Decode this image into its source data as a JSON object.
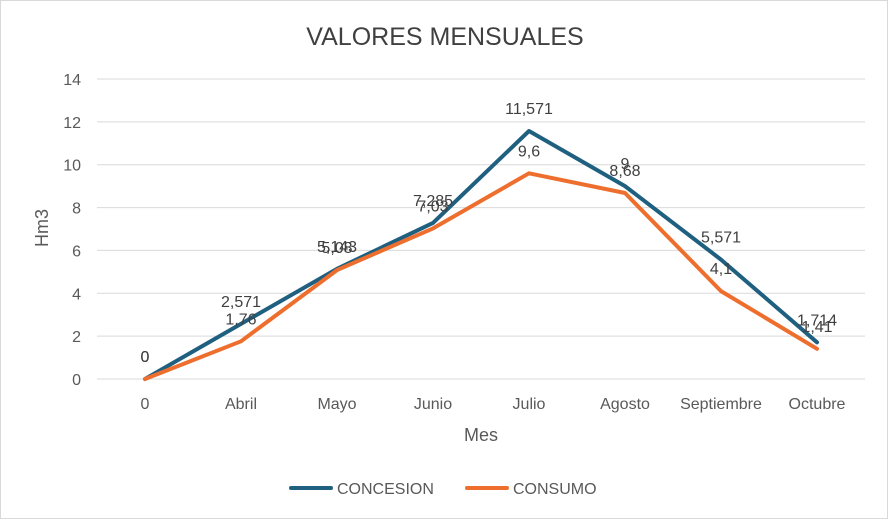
{
  "chart_data": {
    "type": "line",
    "title": "VALORES MENSUALES",
    "xlabel": "Mes",
    "ylabel": "Hm3",
    "categories": [
      "0",
      "Abril",
      "Mayo",
      "Junio",
      "Julio",
      "Agosto",
      "Septiembre",
      "Octubre"
    ],
    "ylim": [
      0,
      14
    ],
    "yticks": [
      "0",
      "2",
      "4",
      "6",
      "8",
      "10",
      "12",
      "14"
    ],
    "grid": true,
    "legend_position": "bottom",
    "series": [
      {
        "name": "CONCESION",
        "color": "#1f5f7f",
        "values": [
          0,
          2.571,
          5.143,
          7.285,
          11.571,
          9,
          5.571,
          1.714
        ],
        "labels": [
          "0",
          "2,571",
          "5,143",
          "7,285",
          "11,571",
          "9",
          "5,571",
          "1,714"
        ]
      },
      {
        "name": "CONSUMO",
        "color": "#ee6e2d",
        "values": [
          0,
          1.76,
          5.08,
          7.03,
          9.6,
          8.68,
          4.1,
          1.41
        ],
        "labels": [
          "0",
          "1,76",
          "5,08",
          "7,03",
          "9,6",
          "8,68",
          "4,1",
          "1,41"
        ]
      }
    ]
  }
}
